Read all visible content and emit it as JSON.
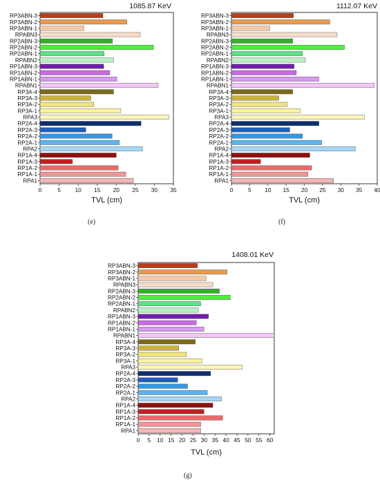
{
  "panel_labels": [
    "(e)",
    "(f)",
    "(g)"
  ],
  "colors": {
    "RP3ABN-3": "#b5401c",
    "RP3ABN-2": "#e89a4e",
    "RP3ABN-1": "#f6c8a6",
    "RPABN3": "#f5dcc8",
    "RP2ABN-3": "#33b028",
    "RP2ABN-2": "#4cf03c",
    "RP2ABN-1": "#5ee08a",
    "RPABN2": "#b9efc1",
    "RP1ABN-3": "#6f1fa8",
    "RP1ABN-2": "#c86ae6",
    "RP1ABN-1": "#d69af0",
    "RPABN1": "#f3c7f7",
    "RP3A-4": "#7a6a18",
    "RP3A-3": "#c7b23e",
    "RP3A-2": "#f0e47a",
    "RP3A-1": "#faf3a0",
    "RPA3": "#fbf5bd",
    "RP2A-4": "#0f2f6e",
    "RP2A-3": "#1f5fb5",
    "RP2A-2": "#3497e0",
    "RP2A-1": "#5ab5ee",
    "RPA2": "#a7d6f5",
    "RP1A-4": "#8e1010",
    "RP1A-3": "#c02020",
    "RP1A-2": "#e86a6a",
    "RP1A-1": "#f09595",
    "RPA1": "#f5b5b5"
  },
  "chart_data": [
    {
      "type": "bar",
      "orientation": "horizontal",
      "title": "1085.87 KeV",
      "xlabel": "TVL (cm)",
      "xlim": [
        0,
        35
      ],
      "xticks": [
        0,
        5,
        10,
        15,
        20,
        25,
        30,
        35
      ],
      "categories": [
        "RP3ABN-3",
        "RP3ABN-2",
        "RP3ABN-1",
        "RPABN3",
        "RP2ABN-3",
        "RP2ABN-2",
        "RP2ABN-1",
        "RPABN2",
        "RP1ABN-3",
        "RP1ABN-2",
        "RP1ABN-1",
        "RPABN1",
        "RP3A-4",
        "RP3A-3",
        "RP3A-2",
        "RP3A-1",
        "RPA3",
        "RP2A-4",
        "RP2A-3",
        "RP2A-2",
        "RP2A-1",
        "RPA2",
        "RP1A-4",
        "RP1A-3",
        "RP1A-2",
        "RP1A-1",
        "RPA1"
      ],
      "values": [
        16.5,
        22.8,
        11.5,
        26.3,
        19.0,
        29.8,
        16.8,
        19.3,
        16.7,
        18.3,
        20.2,
        31.0,
        19.3,
        13.3,
        14.1,
        21.2,
        33.8,
        26.5,
        12.0,
        18.9,
        20.8,
        26.9,
        20.0,
        8.5,
        20.5,
        22.5,
        24.5
      ]
    },
    {
      "type": "bar",
      "orientation": "horizontal",
      "title": "1112.07 KeV",
      "xlabel": "TVL (cm)",
      "xlim": [
        0,
        40
      ],
      "xticks": [
        0,
        5,
        10,
        15,
        20,
        25,
        30,
        35,
        40
      ],
      "categories": [
        "RP3ABN-3",
        "RP3ABN-2",
        "RP3ABN-1",
        "RPABN3",
        "RP2ABN-3",
        "RP2ABN-2",
        "RP2ABN-1",
        "RPABN2",
        "RP1ABN-3",
        "RP1ABN-2",
        "RP1ABN-1",
        "RPABN1",
        "RP3A-4",
        "RP3A-3",
        "RP3A-2",
        "RP3A-1",
        "RPA3",
        "RP2A-4",
        "RP2A-3",
        "RP2A-2",
        "RP2A-1",
        "RPA2",
        "RP1A-4",
        "RP1A-3",
        "RP1A-2",
        "RP1A-1",
        "RPA1"
      ],
      "values": [
        17.0,
        27.0,
        10.5,
        29.0,
        16.8,
        31.0,
        19.5,
        20.3,
        17.2,
        17.8,
        24.0,
        39.2,
        16.8,
        13.0,
        15.3,
        18.8,
        36.5,
        24.0,
        16.0,
        19.5,
        24.8,
        34.0,
        21.5,
        8.0,
        22.0,
        21.0,
        28.0
      ]
    },
    {
      "type": "bar",
      "orientation": "horizontal",
      "title": "1408.01 KeV",
      "xlabel": "TVL (cm)",
      "xlim": [
        0,
        62
      ],
      "xticks": [
        0,
        5,
        10,
        15,
        20,
        25,
        30,
        35,
        40,
        45,
        50,
        55,
        60
      ],
      "categories": [
        "RP3ABN-3",
        "RP3ABN-2",
        "RP3ABN-1",
        "RPABN3",
        "RP2ABN-3",
        "RP2ABN-2",
        "RP2ABN-1",
        "RPABN2",
        "RP1ABN-3",
        "RP1ABN-2",
        "RP1ABN-1",
        "RPABN1",
        "RP3A-4",
        "RP3A-3",
        "RP3A-2",
        "RP3A-1",
        "RPA3",
        "RP2A-4",
        "RP2A-3",
        "RP2A-2",
        "RP2A-1",
        "RPA2",
        "RP1A-4",
        "RP1A-3",
        "RP1A-2",
        "RP1A-1",
        "RPA1"
      ],
      "values": [
        27.0,
        40.5,
        31.0,
        34.0,
        37.0,
        42.0,
        28.5,
        27.5,
        32.0,
        26.5,
        30.0,
        62.0,
        26.0,
        18.5,
        22.0,
        29.0,
        47.5,
        33.0,
        18.0,
        22.5,
        31.5,
        38.0,
        34.0,
        30.0,
        38.5,
        28.5,
        28.5
      ]
    }
  ]
}
